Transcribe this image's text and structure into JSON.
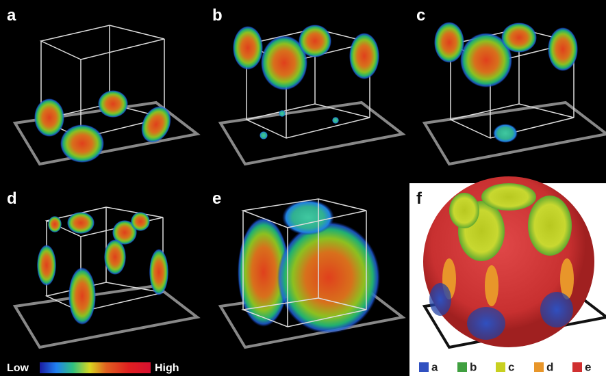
{
  "panels": [
    {
      "label": "a"
    },
    {
      "label": "b"
    },
    {
      "label": "c"
    },
    {
      "label": "d"
    },
    {
      "label": "e"
    },
    {
      "label": "f"
    }
  ],
  "colorbar": {
    "low": "Low",
    "high": "High"
  },
  "legend": [
    {
      "label": "a"
    },
    {
      "label": "b"
    },
    {
      "label": "c"
    },
    {
      "label": "d"
    },
    {
      "label": "e"
    }
  ]
}
